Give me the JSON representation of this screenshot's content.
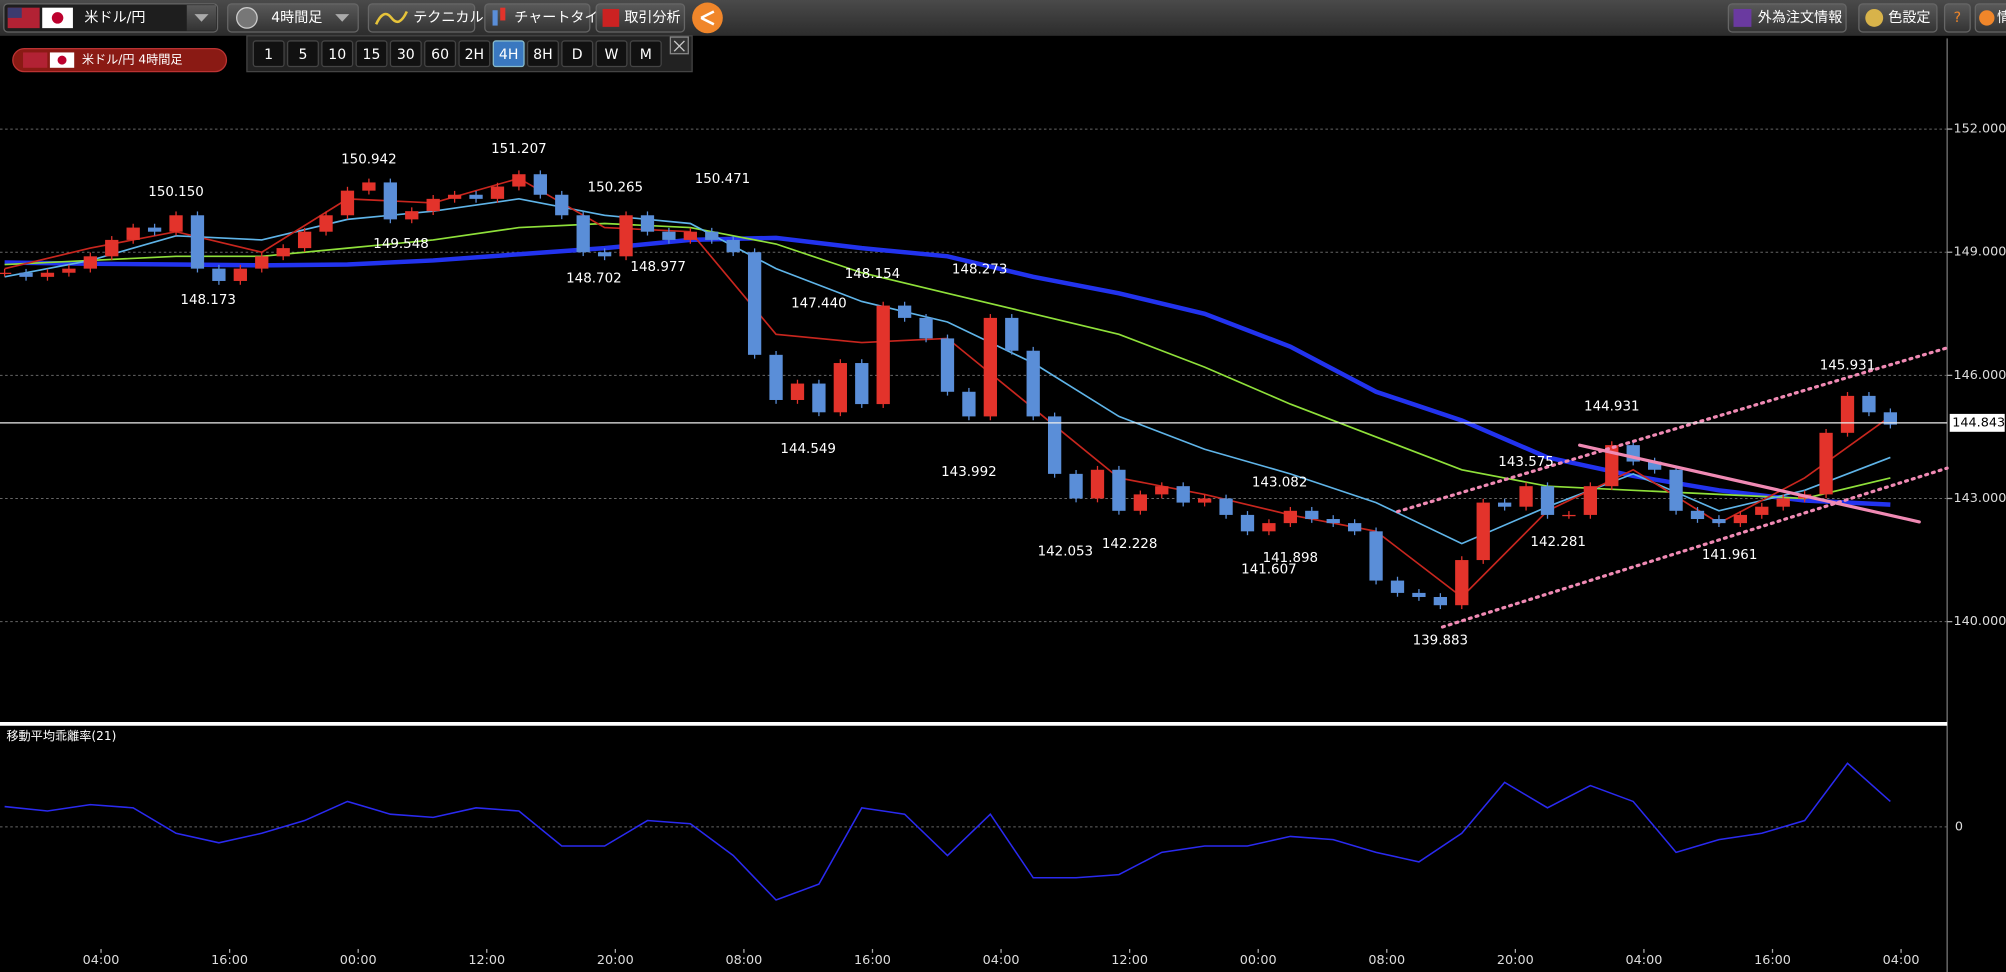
{
  "toolbar": {
    "pair": "米ドル/円",
    "timeframe": "4時間足",
    "technical": "テクニカル",
    "chart_type": "チャートタイプ",
    "analysis": "取引分析",
    "fx_orders": "外為注文情報",
    "color_settings": "色設定",
    "help": "?",
    "info": "情"
  },
  "chart_data": {
    "type": "candlestick",
    "title": "米ドル/円 4時間足",
    "intervals": [
      "1",
      "5",
      "10",
      "15",
      "30",
      "60",
      "2H",
      "4H",
      "8H",
      "D",
      "W",
      "M"
    ],
    "active_interval": "4H",
    "up_color": "#e3332b",
    "down_color": "#5a8ed8",
    "x": [
      0,
      2,
      4,
      6,
      8,
      10,
      12,
      14,
      16,
      18,
      20,
      22,
      24,
      26,
      28,
      30,
      32,
      34,
      36,
      38,
      40,
      42,
      44,
      46,
      48,
      50,
      52,
      54,
      56,
      58,
      60,
      62,
      64,
      66,
      68,
      70,
      72,
      74,
      76,
      78,
      80,
      82,
      84,
      86,
      88,
      90,
      92,
      94,
      96,
      98,
      100,
      102,
      104,
      106,
      108,
      110,
      112,
      114,
      116,
      118,
      120,
      122,
      124,
      126,
      128,
      130,
      132,
      134,
      136,
      138,
      140,
      142,
      144,
      146,
      148,
      150,
      152,
      154,
      156,
      158,
      160,
      162,
      164,
      166,
      168,
      170,
      172,
      174,
      176
    ],
    "closes": [
      148.5,
      148.4,
      148.5,
      148.6,
      148.9,
      149.3,
      149.6,
      149.5,
      149.9,
      148.6,
      148.3,
      148.6,
      148.9,
      149.1,
      149.5,
      149.9,
      150.5,
      150.7,
      149.8,
      150.0,
      150.3,
      150.4,
      150.3,
      150.6,
      150.9,
      150.4,
      149.9,
      149.0,
      148.9,
      149.9,
      149.5,
      149.3,
      149.5,
      149.3,
      149.0,
      146.5,
      145.4,
      145.8,
      145.1,
      146.3,
      145.3,
      147.7,
      147.4,
      146.9,
      145.6,
      145.0,
      147.4,
      146.6,
      145.0,
      143.6,
      143.0,
      143.7,
      142.7,
      143.1,
      143.3,
      142.9,
      143.0,
      142.6,
      142.2,
      142.4,
      142.7,
      142.5,
      142.4,
      142.2,
      141.0,
      140.7,
      140.6,
      140.4,
      141.5,
      142.9,
      142.8,
      143.3,
      142.6,
      142.6,
      143.3,
      144.3,
      143.9,
      143.7,
      142.7,
      142.5,
      142.4,
      142.6,
      142.8,
      143.0,
      143.1,
      144.6,
      145.5,
      145.1,
      144.8
    ],
    "ma_x": [
      0,
      8,
      16,
      24,
      32,
      40,
      48,
      56,
      64,
      72,
      80,
      88,
      96,
      104,
      112,
      120,
      128,
      136,
      144,
      152,
      160,
      168,
      176
    ],
    "moving_averages": [
      {
        "color": "#2233ee",
        "values": [
          148.75,
          148.72,
          148.7,
          148.68,
          148.7,
          148.8,
          148.95,
          149.1,
          149.3,
          149.35,
          149.1,
          148.9,
          148.4,
          148.0,
          147.5,
          146.7,
          145.6,
          144.9,
          144.0,
          143.55,
          143.2,
          142.95,
          142.85
        ]
      },
      {
        "color": "#8fe03a",
        "values": [
          148.7,
          148.8,
          148.9,
          148.9,
          149.1,
          149.3,
          149.6,
          149.7,
          149.6,
          149.2,
          148.5,
          148.0,
          147.5,
          147.0,
          146.2,
          145.3,
          144.5,
          143.7,
          143.3,
          143.2,
          143.1,
          143.0,
          143.5
        ]
      },
      {
        "color": "#5fb4e8",
        "values": [
          148.4,
          148.8,
          149.4,
          149.3,
          149.8,
          150.0,
          150.3,
          149.9,
          149.7,
          148.6,
          147.8,
          147.3,
          146.3,
          145.0,
          144.2,
          143.6,
          142.9,
          141.9,
          142.8,
          143.6,
          142.7,
          143.2,
          144.0
        ]
      },
      {
        "color": "#c8261e",
        "values": [
          148.6,
          149.1,
          149.5,
          149.0,
          150.3,
          150.2,
          150.8,
          149.6,
          149.5,
          147.0,
          146.8,
          146.9,
          145.2,
          143.5,
          143.1,
          142.6,
          142.2,
          140.6,
          142.7,
          143.7,
          142.4,
          143.5,
          145.0
        ]
      }
    ],
    "annotations": [
      {
        "x": 16,
        "value": 150.15,
        "label": "150.150"
      },
      {
        "x": 19,
        "value": 148.173,
        "label": "148.173"
      },
      {
        "x": 34,
        "value": 150.942,
        "label": "150.942"
      },
      {
        "x": 37,
        "value": 149.548,
        "label": "149.548"
      },
      {
        "x": 48,
        "value": 151.207,
        "label": "151.207"
      },
      {
        "x": 55,
        "value": 148.702,
        "label": "148.702"
      },
      {
        "x": 57,
        "value": 150.265,
        "label": "150.265"
      },
      {
        "x": 61,
        "value": 148.977,
        "label": "148.977"
      },
      {
        "x": 67,
        "value": 150.471,
        "label": "150.471"
      },
      {
        "x": 76,
        "value": 147.44,
        "label": "147.440"
      },
      {
        "x": 75,
        "value": 144.549,
        "label": "144.549"
      },
      {
        "x": 81,
        "value": 148.154,
        "label": "148.154"
      },
      {
        "x": 90,
        "value": 143.992,
        "label": "143.992"
      },
      {
        "x": 91,
        "value": 148.273,
        "label": "148.273"
      },
      {
        "x": 99,
        "value": 142.053,
        "label": "142.053"
      },
      {
        "x": 105,
        "value": 142.228,
        "label": "142.228"
      },
      {
        "x": 119,
        "value": 143.082,
        "label": "143.082"
      },
      {
        "x": 118,
        "value": 141.607,
        "label": "141.607"
      },
      {
        "x": 120,
        "value": 141.898,
        "label": "141.898"
      },
      {
        "x": 134,
        "value": 139.883,
        "label": "139.883"
      },
      {
        "x": 142,
        "value": 143.575,
        "label": "143.575"
      },
      {
        "x": 145,
        "value": 142.281,
        "label": "142.281"
      },
      {
        "x": 150,
        "value": 144.931,
        "label": "144.931"
      },
      {
        "x": 161,
        "value": 141.961,
        "label": "141.961"
      },
      {
        "x": 172,
        "value": 145.931,
        "label": "145.931"
      }
    ],
    "trendlines": [
      {
        "style": "dotted",
        "color": "#f08ab4",
        "x": [
          130,
          181.3
        ],
        "values": [
          142.68,
          146.67
        ]
      },
      {
        "style": "dotted",
        "color": "#f08ab4",
        "x": [
          134.2,
          181.3
        ],
        "values": [
          139.87,
          143.74
        ]
      },
      {
        "style": "solid",
        "color": "#f08ab4",
        "x": [
          147,
          178.7
        ],
        "values": [
          144.3,
          142.43
        ]
      }
    ],
    "current_price": 144.843,
    "xlim": [
      -0.43,
      181.3
    ],
    "xticks": [
      {
        "value": 9,
        "label": "04:00"
      },
      {
        "value": 21,
        "label": "16:00"
      },
      {
        "value": 33,
        "label": "00:00"
      },
      {
        "value": 45,
        "label": "12:00"
      },
      {
        "value": 57,
        "label": "20:00"
      },
      {
        "value": 69,
        "label": "08:00"
      },
      {
        "value": 81,
        "label": "16:00"
      },
      {
        "value": 93,
        "label": "04:00"
      },
      {
        "value": 105,
        "label": "12:00"
      },
      {
        "value": 117,
        "label": "00:00"
      },
      {
        "value": 129,
        "label": "08:00"
      },
      {
        "value": 141,
        "label": "20:00"
      },
      {
        "value": 153,
        "label": "04:00"
      },
      {
        "value": 165,
        "label": "16:00"
      },
      {
        "value": 177,
        "label": "04:00"
      }
    ],
    "ylim": [
      137.54,
      154.21
    ],
    "yticks": [
      {
        "value": 140,
        "label": "140.000"
      },
      {
        "value": 143,
        "label": "143.000"
      },
      {
        "value": 146,
        "label": "146.000"
      },
      {
        "value": 149,
        "label": "149.000"
      },
      {
        "value": 152,
        "label": "152.000"
      }
    ],
    "grid": true,
    "oscillator": {
      "title": "移動平均乖離率(21)",
      "color": "#2a2af0",
      "x": [
        0,
        4,
        8,
        12,
        16,
        20,
        24,
        28,
        32,
        36,
        40,
        44,
        48,
        52,
        56,
        60,
        64,
        68,
        72,
        76,
        80,
        84,
        88,
        92,
        96,
        100,
        104,
        108,
        112,
        116,
        120,
        124,
        128,
        132,
        136,
        140,
        144,
        148,
        152,
        156,
        160,
        164,
        168,
        172,
        176
      ],
      "values": [
        0.64,
        0.5,
        0.7,
        0.6,
        -0.2,
        -0.5,
        -0.2,
        0.2,
        0.8,
        0.4,
        0.3,
        0.6,
        0.5,
        -0.6,
        -0.6,
        0.2,
        0.1,
        -0.9,
        -2.3,
        -1.8,
        0.6,
        0.4,
        -0.9,
        0.4,
        -1.6,
        -1.6,
        -1.5,
        -0.8,
        -0.6,
        -0.6,
        -0.3,
        -0.4,
        -0.8,
        -1.1,
        -0.2,
        1.4,
        0.6,
        1.3,
        0.8,
        -0.8,
        -0.4,
        -0.2,
        0.2,
        2.0,
        0.8
      ],
      "ylim": [
        -3.84,
        3.2
      ],
      "yticks": [
        0
      ]
    }
  }
}
